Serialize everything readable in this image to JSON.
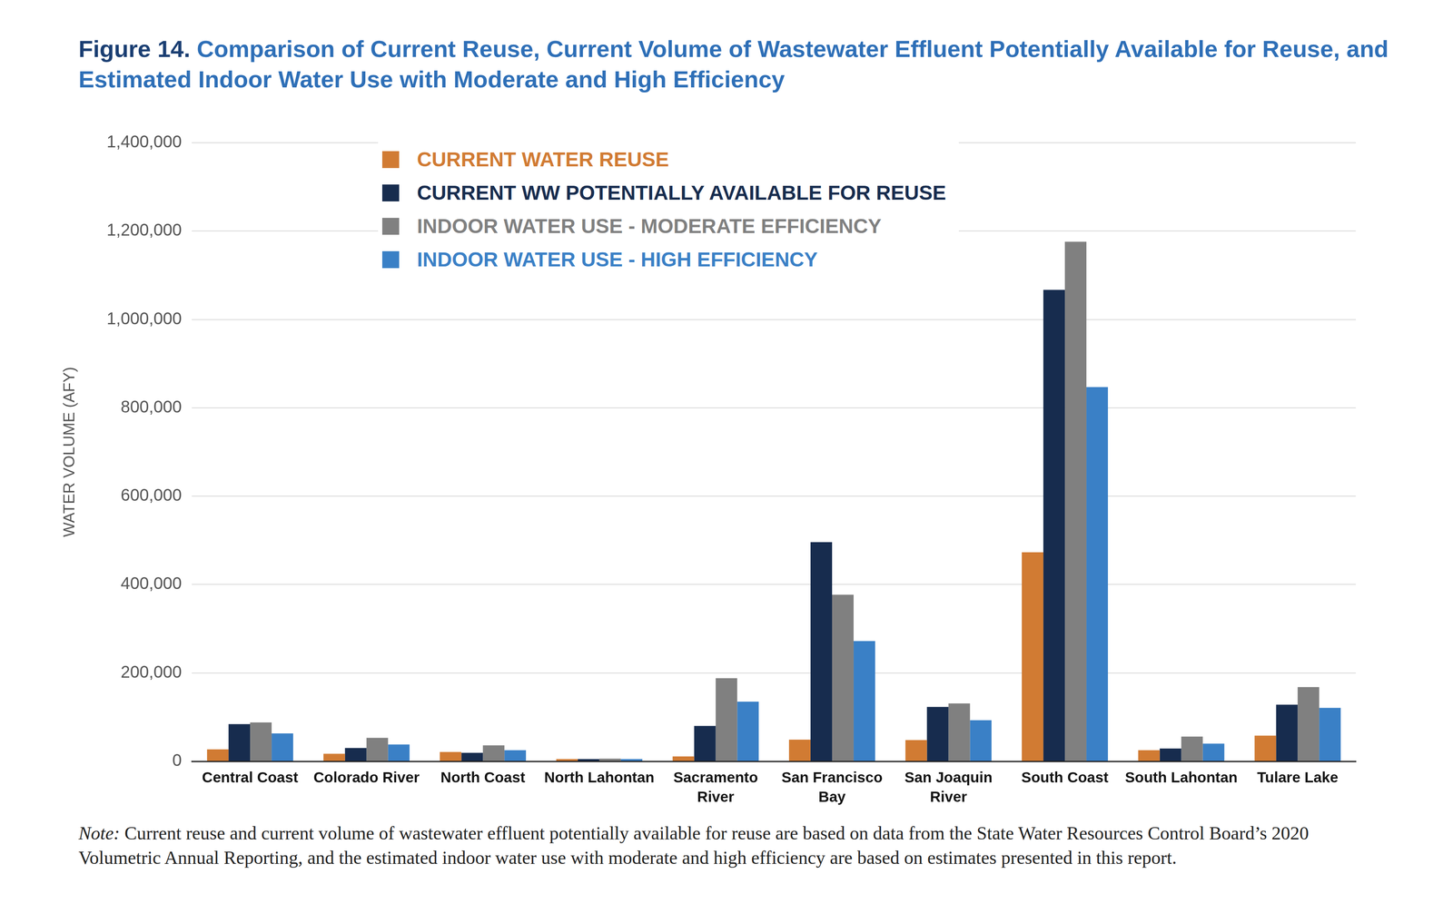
{
  "chart_data": {
    "type": "bar",
    "figure_label": "Figure 14.",
    "title": "Comparison of Current Reuse, Current Volume of Wastewater Effluent Potentially Available for Reuse, and Estimated Indoor Water Use with Moderate and High Efficiency",
    "y_label": "WATER VOLUME (AFY)",
    "note_label": "Note:",
    "note": "Current reuse and current volume of wastewater effluent potentially available for reuse are based on data from the State Water Resources Control Board’s 2020 Volumetric Annual Reporting, and the estimated indoor water use with moderate and high efficiency are based on estimates presented in this report.",
    "categories": [
      "Central Coast",
      "Colorado River",
      "North Coast",
      "North Lahontan",
      "Sacramento\nRiver",
      "San Francisco\nBay",
      "San Joaquin\nRiver",
      "South Coast",
      "South Lahontan",
      "Tulare Lake"
    ],
    "series": [
      {
        "name": "CURRENT WATER REUSE",
        "color": "#D17B33",
        "values": [
          27000,
          17000,
          21000,
          5000,
          11000,
          49000,
          48000,
          473000,
          25000,
          58000
        ]
      },
      {
        "name": "CURRENT WW POTENTIALLY AVAILABLE FOR REUSE",
        "color": "#172C4E",
        "values": [
          84000,
          30000,
          19000,
          5000,
          80000,
          496000,
          123000,
          1067000,
          29000,
          128000
        ]
      },
      {
        "name": "INDOOR WATER USE - MODERATE EFFICIENCY",
        "color": "#808080",
        "values": [
          88000,
          53000,
          36000,
          6000,
          188000,
          377000,
          131000,
          1176000,
          56000,
          168000
        ]
      },
      {
        "name": "INDOOR WATER USE - HIGH EFFICIENCY",
        "color": "#3A80C6",
        "values": [
          63000,
          38000,
          25000,
          5000,
          135000,
          272000,
          93000,
          847000,
          40000,
          121000
        ]
      }
    ],
    "ylim": [
      0,
      1400000
    ],
    "yticks": [
      0,
      {
        "value": 200000,
        "label": "200,000"
      },
      {
        "value": 400000,
        "label": "400,000"
      },
      {
        "value": 600000,
        "label": "600,000"
      },
      {
        "value": 800000,
        "label": "800,000"
      },
      {
        "value": 1000000,
        "label": "1,000,000"
      },
      {
        "value": 1200000,
        "label": "1,200,000"
      },
      {
        "value": 1400000,
        "label": "1,400,000"
      }
    ],
    "grid": true,
    "legend": "top",
    "data_labels": false
  }
}
